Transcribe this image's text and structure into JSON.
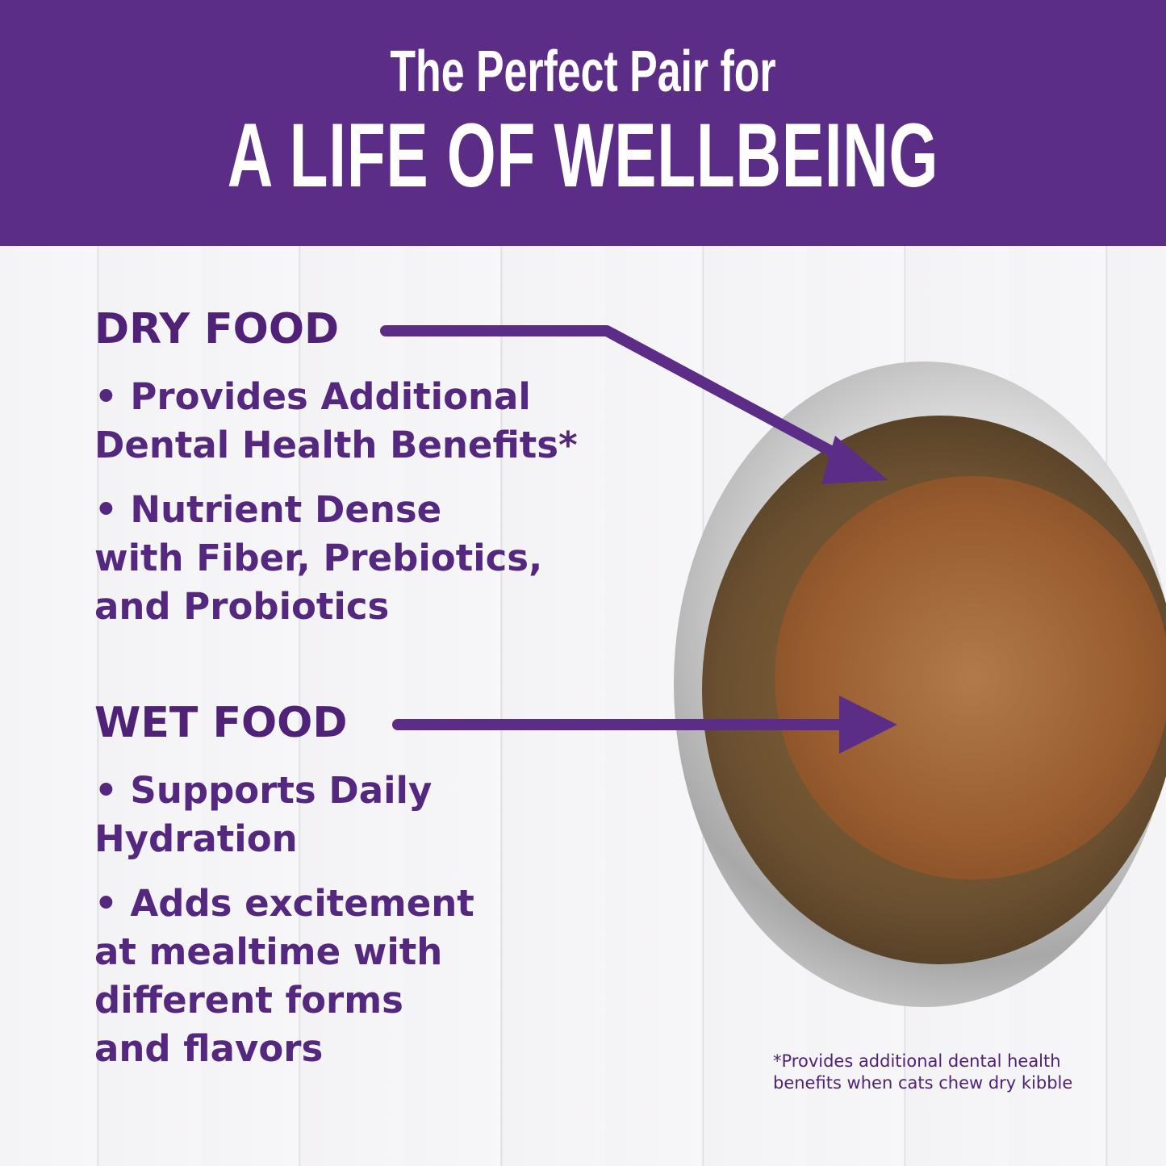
{
  "header": {
    "line1": "The Perfect Pair for",
    "line2": "A LIFE OF WELLBEING"
  },
  "dry": {
    "heading": "DRY FOOD",
    "bullets": [
      "• Provides Additional\nDental Health Benefits*",
      "• Nutrient Dense\nwith Fiber, Prebiotics,\nand Probiotics"
    ]
  },
  "wet": {
    "heading": "WET FOOD",
    "bullets": [
      "• Supports Daily\nHydration",
      "• Adds excitement\nat mealtime with\ndifferent forms\nand flavors"
    ]
  },
  "footnote": "*Provides additional dental health benefits when cats chew dry kibble",
  "colors": {
    "brand": "#5b2d87",
    "text": "#4f2278"
  }
}
